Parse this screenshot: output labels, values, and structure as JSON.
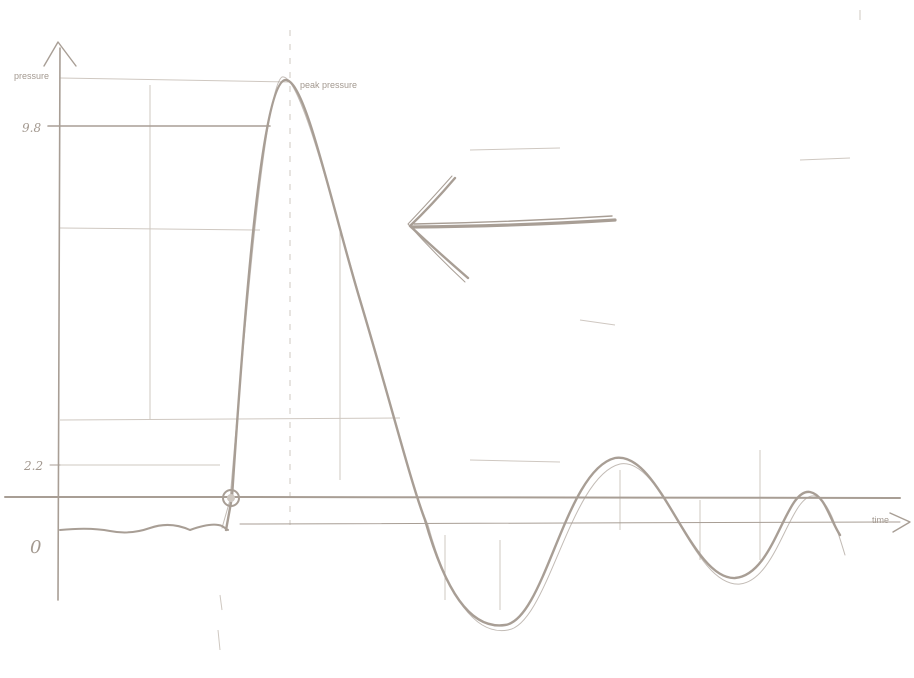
{
  "diagram": {
    "y_axis_label": "pressure",
    "x_axis_label": "time",
    "peak_label": "peak pressure",
    "tick_labels": {
      "upper": "9.8",
      "lower": "2.2",
      "origin": "0"
    },
    "colors": {
      "ink": "#a89e95",
      "faint": "#cfc8c1",
      "background": "#ffffff"
    },
    "icons": [
      "arrow-icon"
    ]
  }
}
